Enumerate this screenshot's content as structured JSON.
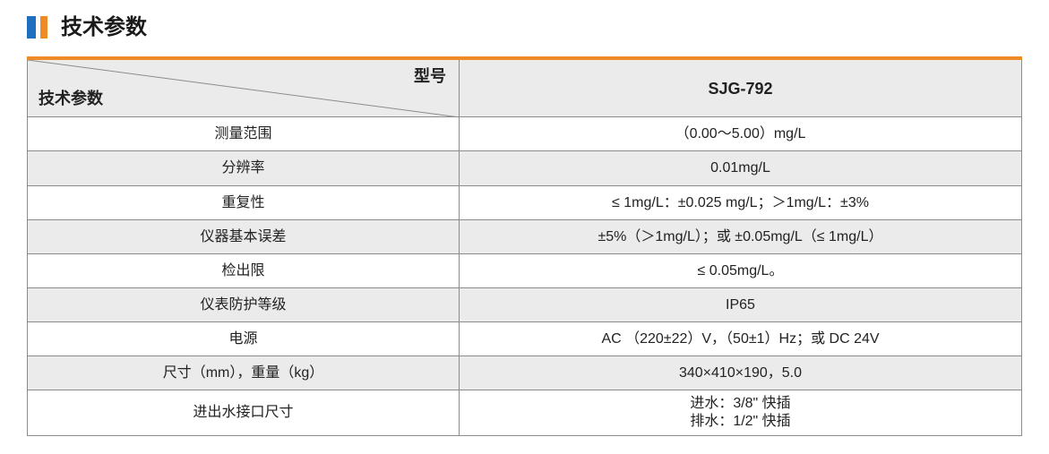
{
  "header": {
    "title": "技术参数"
  },
  "table": {
    "corner_top": "型号",
    "corner_bottom": "技术参数",
    "model": "SJG-792",
    "rows": [
      [
        "测量范围",
        [
          "（0.00～5.00）mg/L"
        ]
      ],
      [
        "分辨率",
        [
          "0.01mg/L"
        ]
      ],
      [
        "重复性",
        [
          "≤ 1mg/L：±0.025 mg/L；＞1mg/L：±3%"
        ]
      ],
      [
        "仪器基本误差",
        [
          "±5%（＞1mg/L）；或 ±0.05mg/L（≤ 1mg/L）"
        ]
      ],
      [
        "检出限",
        [
          "≤ 0.05mg/L。"
        ]
      ],
      [
        "仪表防护等级",
        [
          "IP65"
        ]
      ],
      [
        "电源",
        [
          "AC （220±22）V，（50±1）Hz；或 DC 24V"
        ]
      ],
      [
        "尺寸（mm），重量（kg）",
        [
          "340×410×190，5.0"
        ]
      ],
      [
        "进出水接口尺寸",
        [
          "进水：3/8\" 快插",
          "排水：1/2\" 快插"
        ]
      ]
    ]
  }
}
